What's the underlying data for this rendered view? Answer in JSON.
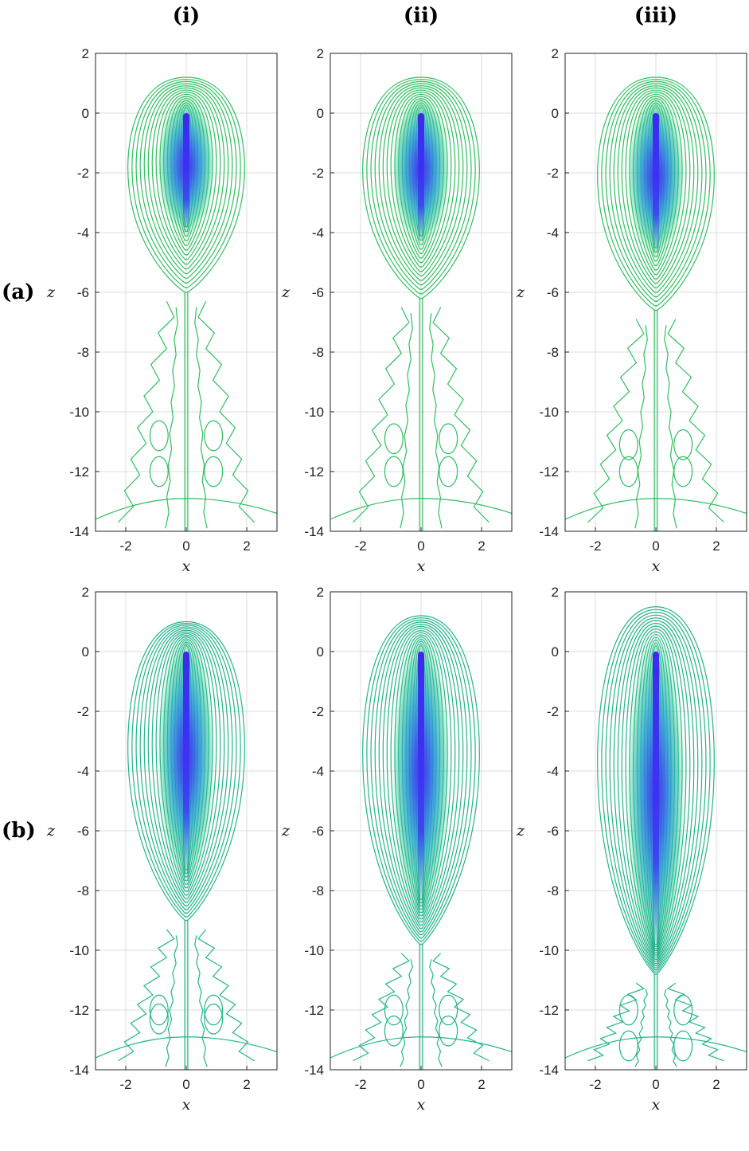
{
  "figure": {
    "column_labels": [
      "(i)",
      "(ii)",
      "(iii)"
    ],
    "row_labels": [
      "(a)",
      "(b)"
    ]
  },
  "chart_data": [
    {
      "type": "heatmap",
      "panel": "(a)(i)",
      "xlabel": "x",
      "ylabel": "z",
      "xlim": [
        -3,
        3
      ],
      "ylim": [
        -14,
        2
      ],
      "xticks": [
        -2,
        0,
        2
      ],
      "yticks": [
        2,
        0,
        -2,
        -4,
        -6,
        -8,
        -10,
        -12,
        -14
      ],
      "grid": true,
      "peak_z_range": [
        -3.5,
        0
      ],
      "outer_contour_top_z": 1.2,
      "waist_z": -6.0,
      "contour_color": "#2ebf5f"
    },
    {
      "type": "heatmap",
      "panel": "(a)(ii)",
      "xlabel": "x",
      "ylabel": "z",
      "xlim": [
        -3,
        3
      ],
      "ylim": [
        -14,
        2
      ],
      "xticks": [
        -2,
        0,
        2
      ],
      "yticks": [
        2,
        0,
        -2,
        -4,
        -6,
        -8,
        -10,
        -12,
        -14
      ],
      "grid": true,
      "peak_z_range": [
        -3.8,
        0
      ],
      "outer_contour_top_z": 1.2,
      "waist_z": -6.2,
      "contour_color": "#2ebf5f"
    },
    {
      "type": "heatmap",
      "panel": "(a)(iii)",
      "xlabel": "x",
      "ylabel": "z",
      "xlim": [
        -3,
        3
      ],
      "ylim": [
        -14,
        2
      ],
      "xticks": [
        -2,
        0,
        2
      ],
      "yticks": [
        2,
        0,
        -2,
        -4,
        -6,
        -8,
        -10,
        -12,
        -14
      ],
      "grid": true,
      "peak_z_range": [
        -4.2,
        0
      ],
      "outer_contour_top_z": 1.2,
      "waist_z": -6.6,
      "contour_color": "#2ebf5f"
    },
    {
      "type": "heatmap",
      "panel": "(b)(i)",
      "xlabel": "x",
      "ylabel": "z",
      "xlim": [
        -3,
        3
      ],
      "ylim": [
        -14,
        2
      ],
      "xticks": [
        -2,
        0,
        2
      ],
      "yticks": [
        2,
        0,
        -2,
        -4,
        -6,
        -8,
        -10,
        -12,
        -14
      ],
      "grid": true,
      "peak_z_range": [
        -7,
        0
      ],
      "outer_contour_top_z": 1.0,
      "waist_z": -9.0,
      "contour_color": "#22b48a"
    },
    {
      "type": "heatmap",
      "panel": "(b)(ii)",
      "xlabel": "x",
      "ylabel": "z",
      "xlim": [
        -3,
        3
      ],
      "ylim": [
        -14,
        2
      ],
      "xticks": [
        -2,
        0,
        2
      ],
      "yticks": [
        2,
        0,
        -2,
        -4,
        -6,
        -8,
        -10,
        -12,
        -14
      ],
      "grid": true,
      "peak_z_range": [
        -8,
        0
      ],
      "outer_contour_top_z": 1.2,
      "waist_z": -9.8,
      "contour_color": "#22b48a"
    },
    {
      "type": "heatmap",
      "panel": "(b)(iii)",
      "xlabel": "x",
      "ylabel": "z",
      "xlim": [
        -3,
        3
      ],
      "ylim": [
        -14,
        2
      ],
      "xticks": [
        -2,
        0,
        2
      ],
      "yticks": [
        2,
        0,
        -2,
        -4,
        -6,
        -8,
        -10,
        -12,
        -14
      ],
      "grid": true,
      "peak_z_range": [
        -9.5,
        0
      ],
      "outer_contour_top_z": 1.5,
      "waist_z": -10.8,
      "contour_color": "#22b48a"
    }
  ]
}
